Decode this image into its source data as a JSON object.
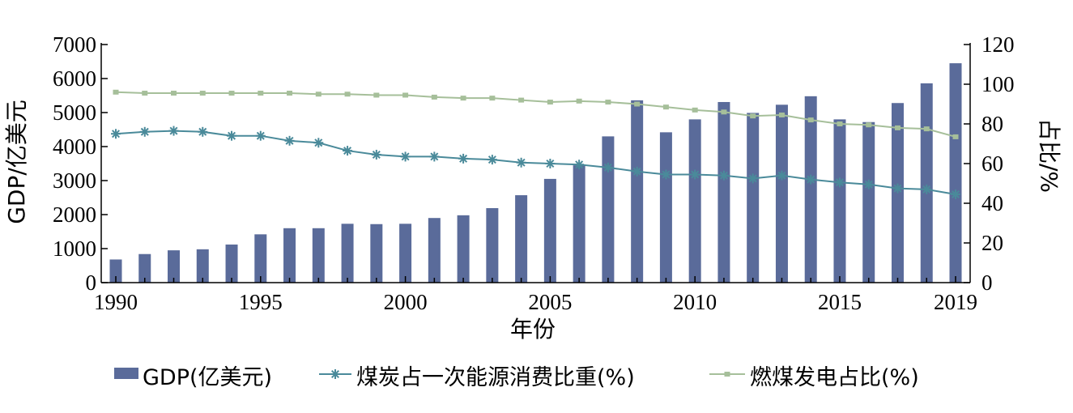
{
  "chart_data": {
    "type": "bar",
    "x": [
      1990,
      1991,
      1992,
      1993,
      1994,
      1995,
      1996,
      1997,
      1998,
      1999,
      2000,
      2001,
      2002,
      2003,
      2004,
      2005,
      2006,
      2007,
      2008,
      2009,
      2010,
      2011,
      2012,
      2013,
      2014,
      2015,
      2016,
      2017,
      2018,
      2019
    ],
    "x_tick_labels": [
      "1990",
      "1995",
      "2000",
      "2005",
      "2010",
      "2015",
      "2019"
    ],
    "xlabel": "年份",
    "ylabel_left": "GDP/亿美元",
    "ylabel_right": "占比/%",
    "ylim_left": [
      0,
      7000
    ],
    "ylim_right": [
      0,
      120
    ],
    "y_left_ticks": [
      "0",
      "1000",
      "2000",
      "3000",
      "4000",
      "5000",
      "6000",
      "7000"
    ],
    "y_right_ticks": [
      "0",
      "20",
      "40",
      "60",
      "80",
      "100",
      "120"
    ],
    "legend_position": "bottom",
    "grid": false,
    "series": [
      {
        "name": "GDP(亿美元)",
        "type": "bar",
        "axis": "left",
        "color": "#5a6b9a",
        "values": [
          680,
          840,
          950,
          980,
          1120,
          1420,
          1600,
          1600,
          1730,
          1720,
          1730,
          1900,
          1980,
          2190,
          2570,
          3050,
          3450,
          4300,
          5360,
          4420,
          4800,
          5310,
          4990,
          5230,
          5480,
          4800,
          4720,
          5280,
          5860,
          6450
        ]
      },
      {
        "name": "煤炭占一次能源消费比重(%)",
        "type": "line",
        "marker": "asterisk",
        "axis": "right",
        "color": "#4a8a9a",
        "values": [
          75,
          76,
          76.5,
          76,
          74,
          74,
          71.5,
          70.5,
          66.5,
          64.5,
          63.5,
          63.5,
          62.5,
          62,
          60.5,
          60,
          59.5,
          58,
          56,
          54.5,
          54.5,
          54,
          52.5,
          54,
          52,
          50.5,
          49.5,
          47.5,
          47,
          44.5
        ]
      },
      {
        "name": "燃煤发电占比(%)",
        "type": "line",
        "marker": "square",
        "axis": "right",
        "color": "#a6bf9a",
        "values": [
          96,
          95.5,
          95.5,
          95.5,
          95.5,
          95.5,
          95.5,
          95,
          95,
          94.5,
          94.5,
          93.5,
          93,
          93,
          92,
          91,
          91.5,
          91,
          90,
          88.5,
          87,
          86,
          84,
          84.5,
          82,
          80,
          79.5,
          78,
          77.5,
          73.5
        ]
      }
    ]
  }
}
